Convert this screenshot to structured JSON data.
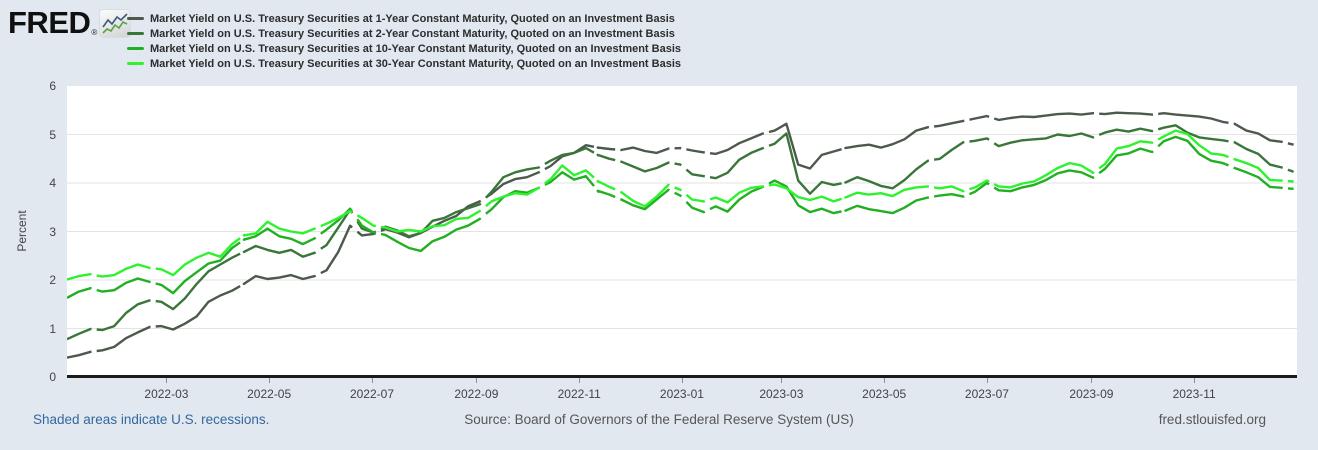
{
  "logo": {
    "text": "FRED",
    "registered_mark": "®",
    "icon": "sparkline-chart-icon"
  },
  "footer": {
    "recessions_note": "Shaded areas indicate U.S. recessions.",
    "source": "Source: Board of Governors of the Federal Reserve System (US)",
    "site_url": "fred.stlouisfed.org"
  },
  "chart_data": {
    "type": "line",
    "title": "",
    "ylabel": "Percent",
    "ylim": [
      0,
      6
    ],
    "y_ticks": [
      0,
      1,
      2,
      3,
      4,
      5,
      6
    ],
    "grid": "horizontal",
    "legend_position": "top-left",
    "x_unit": "weeks since 2022-01-03, axis spans 2022-01 to 2024-01",
    "weeks_total": 104.29,
    "x_ticks": [
      {
        "label": "2022-03",
        "week": 8.43
      },
      {
        "label": "2022-05",
        "week": 17.14
      },
      {
        "label": "2022-07",
        "week": 25.86
      },
      {
        "label": "2022-09",
        "week": 34.71
      },
      {
        "label": "2022-11",
        "week": 43.43
      },
      {
        "label": "2023-01",
        "week": 52.14
      },
      {
        "label": "2023-03",
        "week": 60.57
      },
      {
        "label": "2023-05",
        "week": 69.29
      },
      {
        "label": "2023-07",
        "week": 78.0
      },
      {
        "label": "2023-09",
        "week": 86.86
      },
      {
        "label": "2023-11",
        "week": 95.57
      }
    ],
    "holiday_gap_weeks": [
      2.3,
      7.3,
      14.9,
      21.3,
      24.4,
      26.4,
      35.3,
      40.3,
      44.9,
      46.7,
      51.3,
      52.3,
      54.3,
      59.3,
      65.9,
      73.3,
      76.3,
      78.4,
      87.3,
      92.3,
      98.7,
      103.3
    ],
    "series": [
      {
        "name": "1-Year",
        "label": "Market Yield on U.S. Treasury Securities at 1-Year Constant Maturity, Quoted on an Investment Basis",
        "color": "#4d594d",
        "values": [
          0.4,
          0.45,
          0.52,
          0.55,
          0.62,
          0.8,
          0.92,
          1.03,
          1.05,
          0.98,
          1.1,
          1.25,
          1.55,
          1.68,
          1.78,
          1.92,
          2.08,
          2.02,
          2.05,
          2.1,
          2.02,
          2.08,
          2.2,
          2.58,
          3.12,
          2.92,
          2.95,
          3.05,
          2.98,
          2.88,
          2.97,
          3.1,
          3.22,
          3.32,
          3.52,
          3.62,
          3.78,
          3.98,
          4.08,
          4.12,
          4.22,
          4.35,
          4.55,
          4.62,
          4.78,
          4.73,
          4.7,
          4.68,
          4.73,
          4.66,
          4.62,
          4.71,
          4.72,
          4.67,
          4.63,
          4.6,
          4.68,
          4.82,
          4.92,
          5.02,
          5.08,
          5.22,
          4.38,
          4.3,
          4.58,
          4.65,
          4.72,
          4.76,
          4.79,
          4.73,
          4.8,
          4.9,
          5.08,
          5.15,
          5.18,
          5.23,
          5.28,
          5.33,
          5.38,
          5.3,
          5.34,
          5.37,
          5.36,
          5.39,
          5.42,
          5.43,
          5.41,
          5.44,
          5.42,
          5.45,
          5.44,
          5.43,
          5.41,
          5.44,
          5.41,
          5.39,
          5.37,
          5.33,
          5.26,
          5.22,
          5.08,
          5.02,
          4.88,
          4.85,
          4.79
        ]
      },
      {
        "name": "2-Year",
        "label": "Market Yield on U.S. Treasury Securities at 2-Year Constant Maturity, Quoted on an Investment Basis",
        "color": "#3a763a",
        "values": [
          0.78,
          0.89,
          0.99,
          0.97,
          1.05,
          1.32,
          1.5,
          1.58,
          1.55,
          1.4,
          1.62,
          1.92,
          2.18,
          2.32,
          2.46,
          2.58,
          2.7,
          2.62,
          2.56,
          2.62,
          2.48,
          2.56,
          2.72,
          3.08,
          3.45,
          3.06,
          2.98,
          3.1,
          3.02,
          2.9,
          2.97,
          3.22,
          3.28,
          3.4,
          3.48,
          3.56,
          3.82,
          4.12,
          4.22,
          4.28,
          4.32,
          4.46,
          4.58,
          4.62,
          4.72,
          4.58,
          4.5,
          4.44,
          4.34,
          4.24,
          4.31,
          4.42,
          4.38,
          4.18,
          4.14,
          4.1,
          4.21,
          4.48,
          4.62,
          4.72,
          4.81,
          5.02,
          4.05,
          3.78,
          4.02,
          3.96,
          4.01,
          4.12,
          4.04,
          3.94,
          3.89,
          4.06,
          4.28,
          4.46,
          4.5,
          4.68,
          4.84,
          4.87,
          4.92,
          4.76,
          4.83,
          4.88,
          4.9,
          4.92,
          5.0,
          4.97,
          5.02,
          4.94,
          5.04,
          5.1,
          5.06,
          5.12,
          5.07,
          5.14,
          5.19,
          5.04,
          4.94,
          4.91,
          4.88,
          4.84,
          4.7,
          4.6,
          4.38,
          4.32,
          4.23
        ]
      },
      {
        "name": "10-Year",
        "label": "Market Yield on U.S. Treasury Securities at 10-Year Constant Maturity, Quoted on an Investment Basis",
        "color": "#22b022",
        "values": [
          1.63,
          1.76,
          1.83,
          1.76,
          1.79,
          1.94,
          2.03,
          1.96,
          1.9,
          1.73,
          1.98,
          2.16,
          2.34,
          2.4,
          2.66,
          2.83,
          2.9,
          3.06,
          2.9,
          2.85,
          2.74,
          2.86,
          3.04,
          3.23,
          3.47,
          3.12,
          2.98,
          2.93,
          2.79,
          2.66,
          2.6,
          2.8,
          2.89,
          3.04,
          3.12,
          3.26,
          3.46,
          3.71,
          3.83,
          3.8,
          3.9,
          4.02,
          4.22,
          4.07,
          4.14,
          3.84,
          3.76,
          3.66,
          3.54,
          3.46,
          3.66,
          3.86,
          3.74,
          3.49,
          3.4,
          3.52,
          3.41,
          3.66,
          3.82,
          3.92,
          4.05,
          3.93,
          3.54,
          3.4,
          3.47,
          3.38,
          3.43,
          3.53,
          3.46,
          3.42,
          3.38,
          3.49,
          3.64,
          3.7,
          3.74,
          3.77,
          3.72,
          3.82,
          4.0,
          3.85,
          3.83,
          3.91,
          3.96,
          4.06,
          4.2,
          4.26,
          4.22,
          4.11,
          4.29,
          4.57,
          4.61,
          4.71,
          4.64,
          4.86,
          4.95,
          4.87,
          4.6,
          4.46,
          4.41,
          4.31,
          4.22,
          4.12,
          3.92,
          3.9,
          3.88
        ]
      },
      {
        "name": "30-Year",
        "label": "Market Yield on U.S. Treasury Securities at 30-Year Constant Maturity, Quoted on an Investment Basis",
        "color": "#2df22d",
        "values": [
          2.01,
          2.08,
          2.12,
          2.07,
          2.1,
          2.23,
          2.32,
          2.25,
          2.22,
          2.1,
          2.32,
          2.46,
          2.56,
          2.48,
          2.74,
          2.92,
          2.96,
          3.2,
          3.06,
          3.0,
          2.96,
          3.06,
          3.16,
          3.28,
          3.42,
          3.28,
          3.12,
          3.08,
          3.0,
          3.03,
          3.0,
          3.11,
          3.13,
          3.26,
          3.28,
          3.42,
          3.62,
          3.72,
          3.79,
          3.76,
          3.9,
          4.08,
          4.36,
          4.16,
          4.26,
          4.04,
          3.92,
          3.81,
          3.63,
          3.52,
          3.72,
          3.96,
          3.86,
          3.66,
          3.62,
          3.7,
          3.6,
          3.8,
          3.9,
          3.93,
          3.97,
          3.89,
          3.71,
          3.65,
          3.72,
          3.62,
          3.7,
          3.8,
          3.76,
          3.79,
          3.73,
          3.86,
          3.91,
          3.93,
          3.89,
          3.93,
          3.83,
          3.91,
          4.05,
          3.93,
          3.91,
          3.99,
          4.03,
          4.16,
          4.31,
          4.41,
          4.36,
          4.21,
          4.39,
          4.71,
          4.76,
          4.86,
          4.83,
          4.96,
          5.08,
          5.01,
          4.78,
          4.61,
          4.58,
          4.49,
          4.41,
          4.31,
          4.06,
          4.05,
          4.03
        ]
      }
    ]
  }
}
